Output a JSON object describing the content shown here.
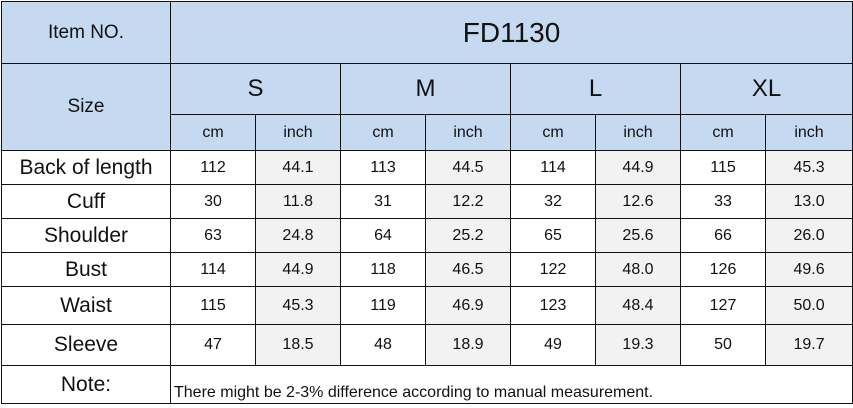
{
  "header": {
    "item_label": "Item NO.",
    "item_value": "FD1130",
    "size_label": "Size",
    "sizes": [
      "S",
      "M",
      "L",
      "XL"
    ],
    "unit_cm": "cm",
    "unit_inch": "inch"
  },
  "rows": [
    {
      "label": "Back of length",
      "values": [
        "112",
        "44.1",
        "113",
        "44.5",
        "114",
        "44.9",
        "115",
        "45.3"
      ]
    },
    {
      "label": "Cuff",
      "values": [
        "30",
        "11.8",
        "31",
        "12.2",
        "32",
        "12.6",
        "33",
        "13.0"
      ]
    },
    {
      "label": "Shoulder",
      "values": [
        "63",
        "24.8",
        "64",
        "25.2",
        "65",
        "25.6",
        "66",
        "26.0"
      ]
    },
    {
      "label": "Bust",
      "values": [
        "114",
        "44.9",
        "118",
        "46.5",
        "122",
        "48.0",
        "126",
        "49.6"
      ]
    },
    {
      "label": "Waist",
      "values": [
        "115",
        "45.3",
        "119",
        "46.9",
        "123",
        "48.4",
        "127",
        "50.0"
      ]
    },
    {
      "label": "Sleeve",
      "values": [
        "47",
        "18.5",
        "48",
        "18.9",
        "49",
        "19.3",
        "50",
        "19.7"
      ]
    }
  ],
  "note": {
    "label": "Note:",
    "text": "There might be 2-3% difference according to manual measurement."
  }
}
